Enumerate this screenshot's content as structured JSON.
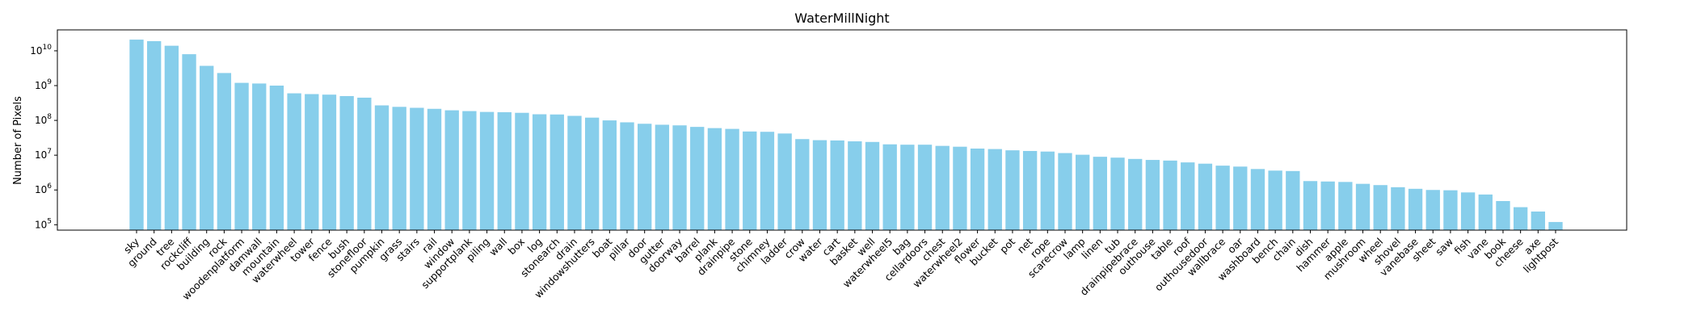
{
  "chart_data": {
    "type": "bar",
    "title": "WaterMillNight",
    "xlabel": "",
    "ylabel": "Number of Pixels",
    "yscale": "log",
    "ylim": [
      70000,
      40000000000
    ],
    "bar_color": "#87ceeb",
    "legend": "none",
    "grid": false,
    "y_ticks": [
      {
        "value": 100000,
        "label_base": "10",
        "label_exp": "5"
      },
      {
        "value": 1000000,
        "label_base": "10",
        "label_exp": "6"
      },
      {
        "value": 10000000,
        "label_base": "10",
        "label_exp": "7"
      },
      {
        "value": 100000000,
        "label_base": "10",
        "label_exp": "8"
      },
      {
        "value": 1000000000,
        "label_base": "10",
        "label_exp": "9"
      },
      {
        "value": 10000000000,
        "label_base": "10",
        "label_exp": "10"
      }
    ],
    "categories": [
      "sky",
      "ground",
      "tree",
      "rockcliff",
      "building",
      "rock",
      "woodenplatform",
      "damwall",
      "mountain",
      "waterwheel",
      "tower",
      "fence",
      "bush",
      "stonefloor",
      "pumpkin",
      "grass",
      "stairs",
      "rail",
      "window",
      "supportplank",
      "piling",
      "wall",
      "box",
      "log",
      "stonearch",
      "drain",
      "windowshutters",
      "boat",
      "pillar",
      "door",
      "gutter",
      "doorway",
      "barrel",
      "plank",
      "drainpipe",
      "stone",
      "chimney",
      "ladder",
      "crow",
      "water",
      "cart",
      "basket",
      "well",
      "waterwheel5",
      "bag",
      "cellardoors",
      "chest",
      "waterwheel2",
      "flower",
      "bucket",
      "pot",
      "net",
      "rope",
      "scarecrow",
      "lamp",
      "linen",
      "tub",
      "drainpipebrace",
      "outhouse",
      "table",
      "roof",
      "outhousedoor",
      "wallbrace",
      "oar",
      "washboard",
      "bench",
      "chain",
      "dish",
      "hammer",
      "apple",
      "mushroom",
      "wheel",
      "shovel",
      "vanebase",
      "sheet",
      "saw",
      "fish",
      "vane",
      "book",
      "cheese",
      "axe",
      "lightpost"
    ],
    "values": [
      21000000000,
      19000000000,
      14000000000,
      8000000000,
      3700000000,
      2300000000,
      1200000000,
      1150000000,
      1000000000,
      600000000,
      570000000,
      550000000,
      500000000,
      450000000,
      270000000,
      245000000,
      230000000,
      215000000,
      195000000,
      185000000,
      175000000,
      172000000,
      165000000,
      150000000,
      148000000,
      135000000,
      120000000,
      100000000,
      88000000,
      80000000,
      75000000,
      72000000,
      65000000,
      60000000,
      57000000,
      48000000,
      47000000,
      42000000,
      29000000,
      27000000,
      26500000,
      25000000,
      24000000,
      20500000,
      20000000,
      20000000,
      18500000,
      17500000,
      15500000,
      15000000,
      13800000,
      13200000,
      12700000,
      11500000,
      10300000,
      9000000,
      8500000,
      7800000,
      7300000,
      7000000,
      6200000,
      5700000,
      5000000,
      4700000,
      4000000,
      3600000,
      3500000,
      1800000,
      1750000,
      1700000,
      1500000,
      1380000,
      1200000,
      1080000,
      1000000,
      980000,
      850000,
      740000,
      480000,
      320000,
      240000,
      120000
    ]
  }
}
